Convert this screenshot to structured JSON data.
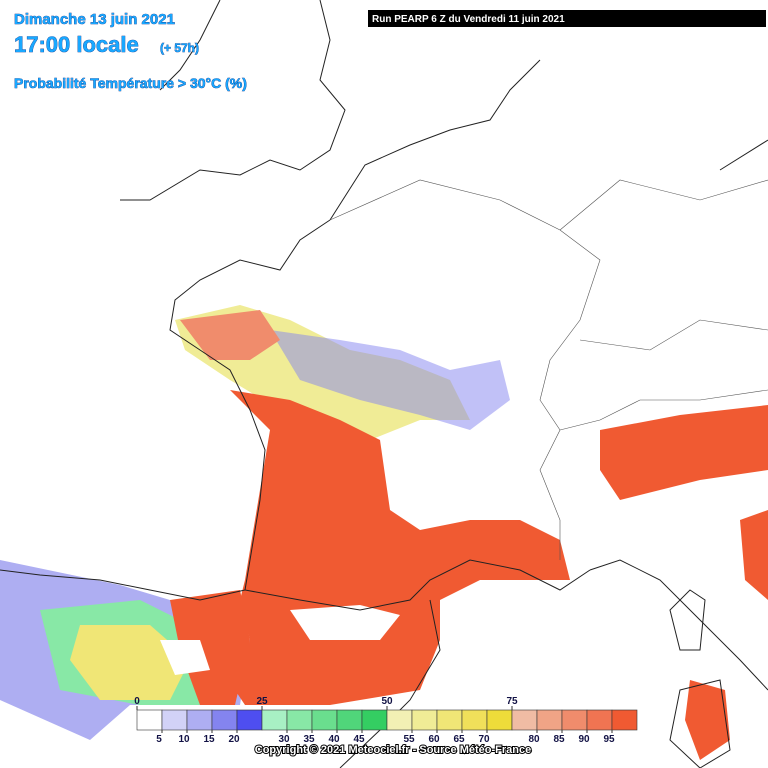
{
  "header": {
    "date": "Dimanche 13 juin 2021",
    "time": "17:00 locale",
    "lead": "(+ 57h)",
    "parameter": "Probabilité Température > 30°C (%)",
    "run": "Run PEARP 6 Z du Vendredi 11 juin 2021"
  },
  "legend": {
    "colors": [
      "#ffffff",
      "#d2d2f7",
      "#aeaef2",
      "#8484ef",
      "#4e4ef0",
      "#a8f0c4",
      "#88e8a6",
      "#6ade8e",
      "#50d67a",
      "#34ce62",
      "#f2f0b4",
      "#f0ec96",
      "#f0e676",
      "#f0e05a",
      "#eedc3a",
      "#f0bca4",
      "#f0a486",
      "#f08c6c",
      "#f07452",
      "#f05a32"
    ],
    "top_ticks": [
      0,
      25,
      50,
      75
    ],
    "bottom_ticks": [
      5,
      10,
      15,
      20,
      30,
      35,
      40,
      45,
      55,
      60,
      65,
      70,
      80,
      85,
      90,
      95
    ]
  },
  "footer": {
    "copyright": "Copyright © 2021 Meteociel.fr - Source Météo-France"
  }
}
